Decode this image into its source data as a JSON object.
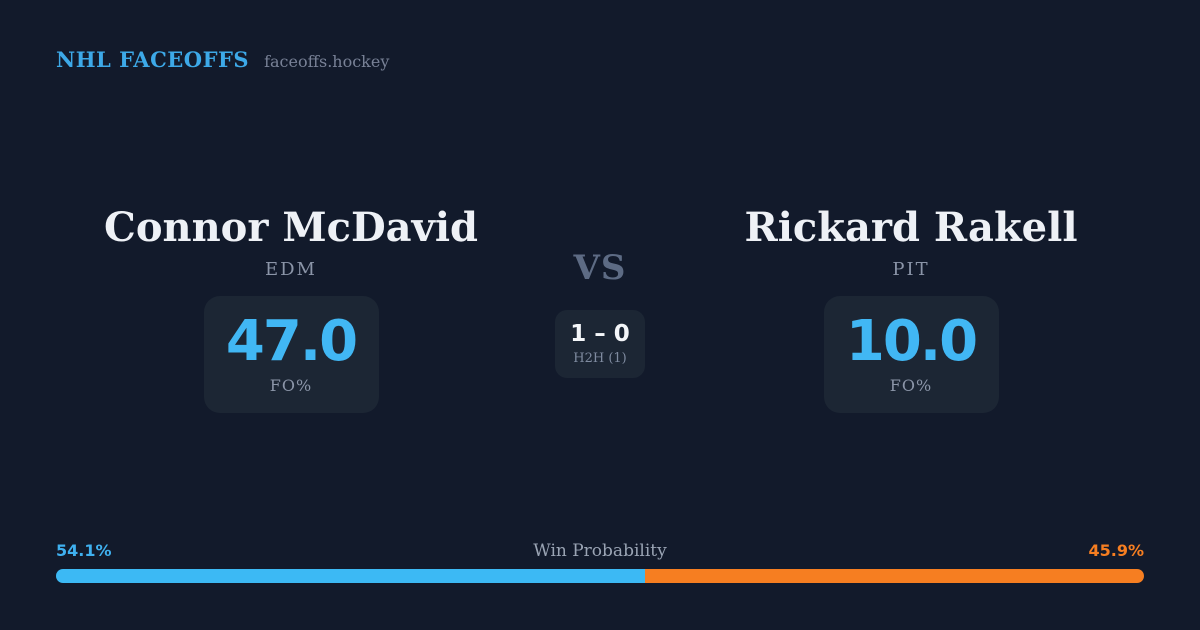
{
  "header": {
    "brand": "NHL FACEOFFS",
    "site": "faceoffs.hockey"
  },
  "players": {
    "left": {
      "name": "Connor McDavid",
      "team": "EDM",
      "stat_value": "47.0",
      "stat_label": "FO%",
      "win_probability": "54.1%"
    },
    "right": {
      "name": "Rickard Rakell",
      "team": "PIT",
      "stat_value": "10.0",
      "stat_label": "FO%",
      "win_probability": "45.9%"
    }
  },
  "center": {
    "vs_label": "VS",
    "h2h_score": "1 – 0",
    "h2h_label": "H2H (1)"
  },
  "win_probability": {
    "label": "Win Probability",
    "left_value": "54.1%",
    "right_value": "45.9%",
    "left_pct": 54.1,
    "right_pct": 45.9
  },
  "chart_data": {
    "type": "bar",
    "title": "Win Probability",
    "categories": [
      "Connor McDavid (EDM)",
      "Rickard Rakell (PIT)"
    ],
    "values": [
      54.1,
      45.9
    ],
    "colors": [
      "#3cb9f4",
      "#f67e21"
    ],
    "layout": "single horizontal stacked bar, full width, rounded ends"
  },
  "colors": {
    "background": "#121a2b",
    "card": "#1c2634",
    "accent_blue": "#41b7f4",
    "accent_orange": "#f67e21",
    "text_primary": "#eef1f6",
    "text_muted": "#8b95a8"
  }
}
